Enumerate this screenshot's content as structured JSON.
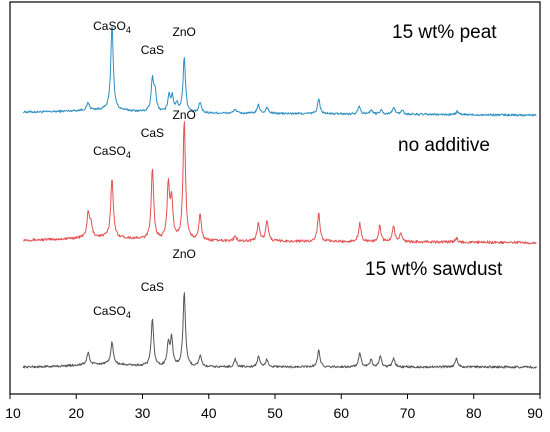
{
  "chart_data": {
    "type": "line",
    "title": "",
    "xlabel": "",
    "ylabel": "",
    "xlim": [
      10,
      90
    ],
    "xticks": [
      10,
      20,
      30,
      40,
      50,
      60,
      70,
      80,
      90
    ],
    "yticks_shown": false,
    "grid": false,
    "series": [
      {
        "name": "15 wt% peat",
        "color": "#2c8fc2",
        "offset": 2.0,
        "baseline_drift": -0.03,
        "peaks": [
          [
            21.8,
            0.07
          ],
          [
            25.4,
            0.82
          ],
          [
            31.5,
            0.3
          ],
          [
            31.9,
            0.18
          ],
          [
            34.0,
            0.16
          ],
          [
            34.5,
            0.14
          ],
          [
            35.2,
            0.08
          ],
          [
            36.3,
            0.52
          ],
          [
            38.7,
            0.1
          ],
          [
            44.0,
            0.04
          ],
          [
            47.5,
            0.08
          ],
          [
            48.8,
            0.06
          ],
          [
            56.6,
            0.14
          ],
          [
            62.7,
            0.08
          ],
          [
            64.5,
            0.04
          ],
          [
            66.0,
            0.04
          ],
          [
            67.9,
            0.07
          ],
          [
            69.2,
            0.04
          ],
          [
            77.5,
            0.03
          ]
        ],
        "peak_labels": [
          {
            "text": "CaSO",
            "sub": "4",
            "x": 25.4
          },
          {
            "text": "CaS",
            "sub": "",
            "x": 31.5
          },
          {
            "text": "ZnO",
            "sub": "",
            "x": 36.3
          }
        ]
      },
      {
        "name": "no additive",
        "color": "#e25252",
        "offset": 1.0,
        "baseline_drift": -0.02,
        "peaks": [
          [
            21.8,
            0.18
          ],
          [
            22.2,
            0.1
          ],
          [
            25.4,
            0.46
          ],
          [
            31.5,
            0.55
          ],
          [
            33.9,
            0.42
          ],
          [
            34.4,
            0.3
          ],
          [
            36.3,
            0.92
          ],
          [
            38.7,
            0.2
          ],
          [
            44.0,
            0.04
          ],
          [
            47.5,
            0.14
          ],
          [
            48.8,
            0.16
          ],
          [
            56.6,
            0.22
          ],
          [
            62.8,
            0.14
          ],
          [
            65.8,
            0.12
          ],
          [
            67.9,
            0.12
          ],
          [
            69.0,
            0.06
          ],
          [
            77.4,
            0.03
          ]
        ],
        "peak_labels": [
          {
            "text": "CaSO",
            "sub": "4",
            "x": 25.4
          },
          {
            "text": "CaS",
            "sub": "",
            "x": 31.5
          },
          {
            "text": "ZnO",
            "sub": "",
            "x": 36.3
          }
        ]
      },
      {
        "name": "15 wt% sawdust",
        "color": "#555555",
        "offset": 0.0,
        "baseline_drift": 0.0,
        "peaks": [
          [
            21.8,
            0.11
          ],
          [
            25.4,
            0.2
          ],
          [
            31.5,
            0.42
          ],
          [
            33.9,
            0.2
          ],
          [
            34.4,
            0.24
          ],
          [
            36.3,
            0.66
          ],
          [
            38.7,
            0.1
          ],
          [
            44.0,
            0.07
          ],
          [
            47.5,
            0.09
          ],
          [
            48.8,
            0.07
          ],
          [
            56.6,
            0.15
          ],
          [
            62.8,
            0.12
          ],
          [
            64.5,
            0.06
          ],
          [
            65.9,
            0.09
          ],
          [
            67.9,
            0.08
          ],
          [
            77.4,
            0.08
          ]
        ],
        "peak_labels": [
          {
            "text": "CaSO",
            "sub": "4",
            "x": 25.4
          },
          {
            "text": "CaS",
            "sub": "",
            "x": 31.5
          },
          {
            "text": "ZnO",
            "sub": "",
            "x": 36.3
          }
        ]
      }
    ]
  }
}
